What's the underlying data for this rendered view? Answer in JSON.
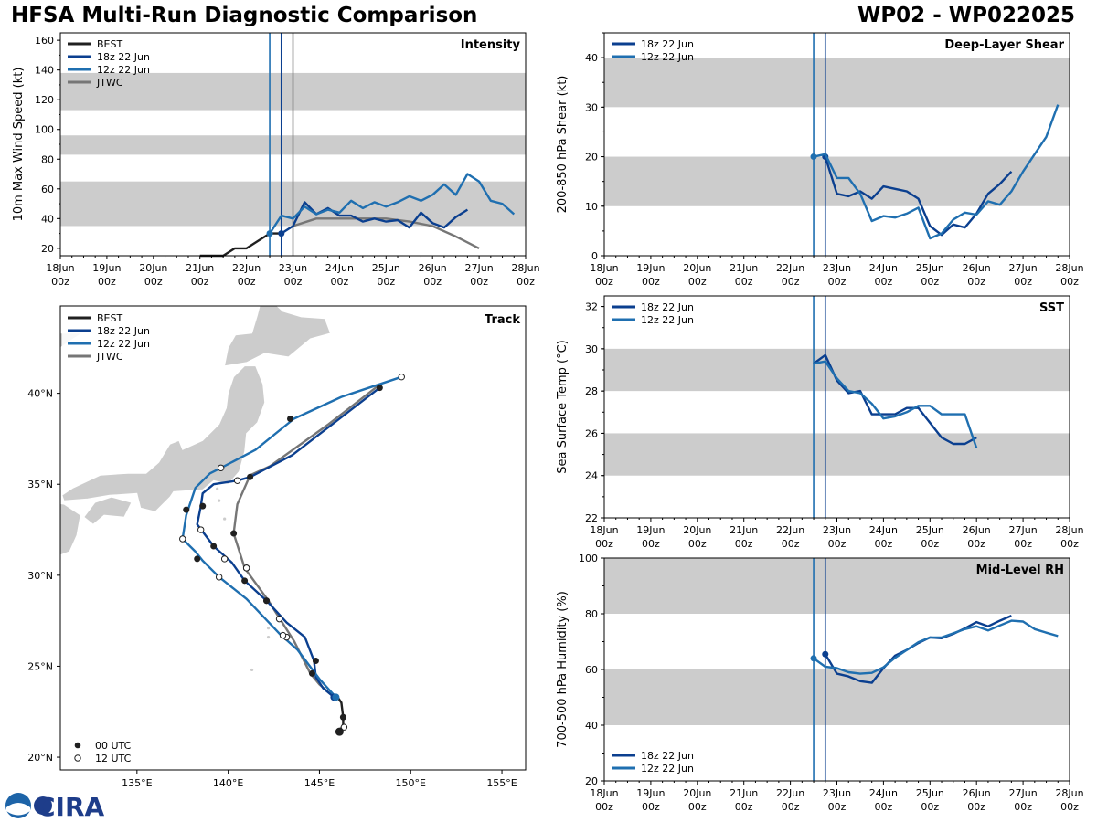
{
  "header": {
    "title_left": "HFSA Multi-Run Diagnostic Comparison",
    "title_right": "WP02 - WP022025"
  },
  "logo": {
    "label": "CIRA"
  },
  "colors": {
    "best": "#202020",
    "r18": "#0b3f8f",
    "r12": "#1f6fb0",
    "jtwc": "#767676",
    "band": "#cccccc",
    "land": "#cccccc"
  },
  "time_axis": {
    "ticks": [
      "18Jun",
      "19Jun",
      "20Jun",
      "21Jun",
      "22Jun",
      "23Jun",
      "24Jun",
      "25Jun",
      "26Jun",
      "27Jun",
      "28Jun"
    ],
    "sub": "00z"
  },
  "chart_data": [
    {
      "id": "intensity",
      "type": "line",
      "title": "Intensity",
      "ylabel": "10m Max Wind Speed (kt)",
      "ylim": [
        15,
        165
      ],
      "yticks": [
        20,
        40,
        60,
        80,
        100,
        120,
        140,
        160
      ],
      "bands": [
        [
          35,
          65
        ],
        [
          83,
          96
        ],
        [
          113,
          138
        ]
      ],
      "init_lines": [
        {
          "t": 4.5,
          "series": "r12"
        },
        {
          "t": 4.75,
          "series": "r18"
        },
        {
          "t": 5.0,
          "series": "jtwc"
        }
      ],
      "legend": [
        "BEST",
        "18z 22 Jun",
        "12z 22 Jun",
        "JTWC"
      ],
      "series": [
        {
          "name": "BEST",
          "key": "best",
          "x": [
            3,
            3.25,
            3.5,
            3.75,
            4,
            4.25,
            4.5,
            4.75
          ],
          "y": [
            15,
            15,
            15,
            20,
            20,
            25,
            30,
            30
          ]
        },
        {
          "name": "JTWC",
          "key": "jtwc",
          "x": [
            5,
            5.5,
            6,
            6.5,
            7,
            7.5,
            8,
            8.5,
            9
          ],
          "y": [
            35,
            40,
            40,
            40,
            40,
            38,
            35,
            28,
            20
          ]
        },
        {
          "name": "18z 22 Jun",
          "key": "r18",
          "x": [
            4.75,
            5,
            5.25,
            5.5,
            5.75,
            6,
            6.25,
            6.5,
            6.75,
            7,
            7.25,
            7.5,
            7.75,
            8,
            8.25,
            8.5,
            8.75
          ],
          "y": [
            30,
            35,
            51,
            43,
            47,
            42,
            42,
            38,
            40,
            38,
            39,
            34,
            44,
            37,
            34,
            41,
            46
          ],
          "marker": {
            "x": 4.75,
            "y": 30
          }
        },
        {
          "name": "12z 22 Jun",
          "key": "r12",
          "x": [
            4.5,
            4.75,
            5,
            5.25,
            5.5,
            5.75,
            6,
            6.25,
            6.5,
            6.75,
            7,
            7.25,
            7.5,
            7.75,
            8,
            8.25,
            8.5,
            8.75,
            9,
            9.25,
            9.5,
            9.75
          ],
          "y": [
            30,
            42,
            40,
            48,
            43,
            46,
            44,
            52,
            47,
            51,
            48,
            51,
            55,
            52,
            56,
            63,
            56,
            70,
            65,
            52,
            50,
            43
          ],
          "marker": {
            "x": 4.5,
            "y": 30
          }
        }
      ]
    },
    {
      "id": "shear",
      "type": "line",
      "title": "Deep-Layer Shear",
      "ylabel": "200-850 hPa Shear (kt)",
      "ylim": [
        0,
        45
      ],
      "yticks": [
        0,
        10,
        20,
        30,
        40
      ],
      "bands": [
        [
          10,
          20
        ],
        [
          30,
          40
        ]
      ],
      "init_lines": [
        {
          "t": 4.5,
          "series": "r12"
        },
        {
          "t": 4.75,
          "series": "r18"
        }
      ],
      "legend": [
        "18z 22 Jun",
        "12z 22 Jun"
      ],
      "series": [
        {
          "name": "18z 22 Jun",
          "key": "r18",
          "x": [
            4.75,
            5,
            5.25,
            5.5,
            5.75,
            6,
            6.25,
            6.5,
            6.75,
            7,
            7.25,
            7.5,
            7.75,
            8,
            8.25,
            8.5,
            8.75
          ],
          "y": [
            20,
            12.5,
            12,
            13,
            11.5,
            14,
            13.5,
            13,
            11.5,
            6,
            4.2,
            6.3,
            5.7,
            8.5,
            12.5,
            14.5,
            17
          ],
          "marker": {
            "x": 4.75,
            "y": 20
          }
        },
        {
          "name": "12z 22 Jun",
          "key": "r12",
          "x": [
            4.5,
            4.75,
            5,
            5.25,
            5.5,
            5.75,
            6,
            6.25,
            6.5,
            6.75,
            7,
            7.25,
            7.5,
            7.75,
            8,
            8.25,
            8.5,
            8.75,
            9,
            9.25,
            9.5,
            9.75
          ],
          "y": [
            20,
            20.5,
            15.7,
            15.7,
            12.5,
            7,
            8,
            7.7,
            8.5,
            9.7,
            3.5,
            4.5,
            7.3,
            8.7,
            8.3,
            11,
            10.3,
            13,
            17,
            20.5,
            24,
            30.5
          ],
          "marker": {
            "x": 4.5,
            "y": 20
          }
        }
      ]
    },
    {
      "id": "track",
      "type": "line",
      "title": "Track",
      "xlim": [
        130.8,
        156.3
      ],
      "ylim": [
        19.3,
        44.8
      ],
      "xticks": [
        {
          "v": 135,
          "label": "135°E"
        },
        {
          "v": 140,
          "label": "140°E"
        },
        {
          "v": 145,
          "label": "145°E"
        },
        {
          "v": 150,
          "label": "150°E"
        },
        {
          "v": 155,
          "label": "155°E"
        }
      ],
      "yticks": [
        {
          "v": 20,
          "label": "20°N"
        },
        {
          "v": 25,
          "label": "25°N"
        },
        {
          "v": 30,
          "label": "30°N"
        },
        {
          "v": 35,
          "label": "35°N"
        },
        {
          "v": 40,
          "label": "40°N"
        }
      ],
      "legend": [
        "BEST",
        "18z 22 Jun",
        "12z 22 Jun",
        "JTWC"
      ],
      "marker_legend": [
        "00 UTC",
        "12 UTC"
      ],
      "series": [
        {
          "name": "BEST",
          "key": "best",
          "lon": [
            146.1,
            146.3,
            146.3,
            146.2,
            146.0,
            145.8
          ],
          "lat": [
            21.4,
            21.8,
            22.2,
            23.0,
            23.3,
            23.3
          ],
          "markers00": [
            [
              146.1,
              21.4
            ],
            [
              146.3,
              22.2
            ]
          ],
          "markers12": [
            [
              146.35,
              21.65
            ]
          ]
        },
        {
          "name": "JTWC",
          "key": "jtwc",
          "lon": [
            145.8,
            145,
            144.5,
            143.6,
            142.2,
            140.9,
            140.3,
            140.5,
            141.2,
            142.3,
            145.5,
            148.2
          ],
          "lat": [
            23.3,
            24.0,
            24.6,
            26.4,
            28.6,
            30.4,
            32.3,
            33.9,
            35.5,
            36.0,
            38.3,
            40.4
          ],
          "markers00": [
            [
              144.6,
              24.6
            ],
            [
              142.1,
              28.6
            ],
            [
              140.3,
              32.3
            ]
          ],
          "markers12": [
            [
              143.2,
              26.6
            ],
            [
              141.0,
              30.4
            ],
            [
              140.5,
              35.2
            ]
          ]
        },
        {
          "name": "18z 22 Jun",
          "key": "r18",
          "lon": [
            145.8,
            145.2,
            144.8,
            144.7,
            144.2,
            143.2,
            142.1,
            140.9,
            140.2,
            139.2,
            138.3,
            138.5,
            138.6,
            139.2,
            140.5,
            141.2,
            143.5,
            148.3
          ],
          "lat": [
            23.3,
            23.8,
            24.4,
            25.3,
            26.6,
            27.4,
            28.6,
            29.7,
            30.7,
            31.6,
            32.8,
            33.8,
            34.5,
            35.0,
            35.2,
            35.4,
            36.6,
            40.3
          ],
          "markers00": [
            [
              144.8,
              25.3
            ],
            [
              142.1,
              28.6
            ],
            [
              139.2,
              31.6
            ],
            [
              138.6,
              33.8
            ],
            [
              141.2,
              35.4
            ],
            [
              148.3,
              40.3
            ]
          ],
          "markers12": [],
          "markers00_small": [
            [
              140.9,
              29.7
            ],
            [
              138.3,
              30.9
            ],
            [
              137.7,
              33.6
            ],
            [
              143.4,
              38.6
            ]
          ],
          "start_marker": [
            145.8,
            23.3
          ]
        },
        {
          "name": "12z 22 Jun",
          "key": "r12",
          "lon": [
            145.9,
            145,
            143.8,
            142.8,
            141.0,
            139.5,
            138.6,
            138.2,
            137.5,
            137.7,
            138.2,
            139.0,
            139.6,
            141.5,
            143.6,
            146.2,
            149.5
          ],
          "lat": [
            23.3,
            24.3,
            25.9,
            26.8,
            28.7,
            29.9,
            30.8,
            31.3,
            32.0,
            33.3,
            34.8,
            35.6,
            35.9,
            36.9,
            38.6,
            39.8,
            40.9
          ],
          "markers00": [],
          "markers12": [
            [
              143.0,
              26.7
            ],
            [
              139.5,
              29.9
            ],
            [
              138.5,
              32.5
            ],
            [
              137.5,
              32.0
            ],
            [
              139.6,
              35.9
            ],
            [
              149.5,
              40.9
            ]
          ],
          "markers12_extra": [
            [
              142.8,
              27.6
            ],
            [
              139.8,
              30.9
            ],
            [
              141.0,
              30.4
            ]
          ],
          "start_marker": [
            145.9,
            23.3
          ]
        }
      ]
    },
    {
      "id": "sst",
      "type": "line",
      "title": "SST",
      "ylabel": "Sea Surface Temp (°C)",
      "ylim": [
        22,
        32.5
      ],
      "yticks": [
        22,
        24,
        26,
        28,
        30,
        32
      ],
      "bands": [
        [
          24,
          26
        ],
        [
          28,
          30
        ]
      ],
      "init_lines": [
        {
          "t": 4.5,
          "series": "r12"
        },
        {
          "t": 4.75,
          "series": "r18"
        }
      ],
      "legend": [
        "18z 22 Jun",
        "12z 22 Jun"
      ],
      "series": [
        {
          "name": "18z 22 Jun",
          "key": "r18",
          "x": [
            4.5,
            4.75,
            5,
            5.25,
            5.5,
            5.75,
            6,
            6.25,
            6.5,
            6.75,
            7,
            7.25,
            7.5,
            7.75,
            8
          ],
          "y": [
            29.3,
            29.7,
            28.5,
            27.9,
            28.0,
            26.9,
            26.9,
            26.9,
            27.2,
            27.2,
            26.5,
            25.8,
            25.5,
            25.5,
            25.8
          ]
        },
        {
          "name": "12z 22 Jun",
          "key": "r12",
          "x": [
            4.5,
            4.75,
            5,
            5.25,
            5.5,
            5.75,
            6,
            6.25,
            6.5,
            6.75,
            7,
            7.25,
            7.5,
            7.75,
            8
          ],
          "y": [
            29.3,
            29.4,
            28.6,
            28.0,
            27.9,
            27.4,
            26.7,
            26.8,
            27.0,
            27.3,
            27.3,
            26.9,
            26.9,
            26.9,
            25.3
          ]
        }
      ]
    },
    {
      "id": "rh",
      "type": "line",
      "title": "Mid-Level RH",
      "ylabel": "700-500 hPa Humidity (%)",
      "ylim": [
        20,
        100
      ],
      "yticks": [
        20,
        40,
        60,
        80,
        100
      ],
      "bands": [
        [
          40,
          60
        ],
        [
          80,
          100
        ]
      ],
      "init_lines": [
        {
          "t": 4.5,
          "series": "r12"
        },
        {
          "t": 4.75,
          "series": "r18"
        }
      ],
      "legend": [
        "18z 22 Jun",
        "12z 22 Jun"
      ],
      "series": [
        {
          "name": "18z 22 Jun",
          "key": "r18",
          "x": [
            4.75,
            5,
            5.25,
            5.5,
            5.75,
            6,
            6.25,
            6.5,
            6.75,
            7,
            7.25,
            7.5,
            7.75,
            8,
            8.25,
            8.5,
            8.75
          ],
          "y": [
            65.5,
            58.5,
            57.5,
            55.8,
            55.2,
            60.5,
            65,
            67,
            69.5,
            71.5,
            71.2,
            72.8,
            74.8,
            77,
            75.5,
            77.5,
            79.3
          ],
          "marker": {
            "x": 4.75,
            "y": 65.5
          }
        },
        {
          "name": "12z 22 Jun",
          "key": "r12",
          "x": [
            4.5,
            4.75,
            5,
            5.25,
            5.5,
            5.75,
            6,
            6.25,
            6.5,
            6.75,
            7,
            7.25,
            7.5,
            7.75,
            8,
            8.25,
            8.5,
            8.75,
            9,
            9.25,
            9.5,
            9.75
          ],
          "y": [
            64,
            61,
            60.5,
            59,
            58.5,
            58.8,
            60.8,
            64.2,
            67,
            69.8,
            71.5,
            71.5,
            73,
            74.5,
            75.5,
            74,
            75.8,
            77.5,
            77.2,
            74.5,
            73.2,
            72
          ],
          "marker": {
            "x": 4.5,
            "y": 64
          }
        }
      ]
    }
  ]
}
